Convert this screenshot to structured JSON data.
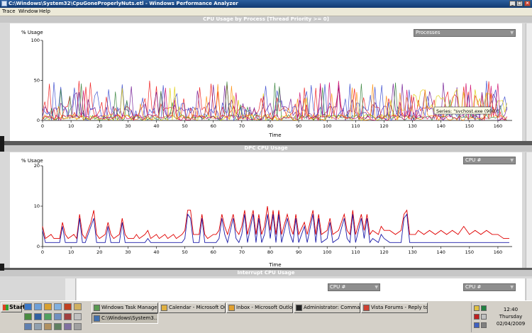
{
  "window": {
    "title": "C:\\Windows\\System32\\CpuGoneProperlyNuts.etl - Windows Performance Analyzer",
    "buttons": {
      "minimize": "_",
      "maximize": "□",
      "close": "×"
    }
  },
  "menu": {
    "items": [
      "Trace",
      "Window",
      "Help"
    ]
  },
  "panels": {
    "cpu": {
      "title": "CPU Usage by Process [Thread Priority >= 0]",
      "dropdown": "Processes",
      "ylabel": "% Usage",
      "xlabel": "Time",
      "tooltip": "Series: \"svchost.exe (900)\""
    },
    "dpc": {
      "title": "DPC CPU Usage",
      "dropdown": "CPU #",
      "ylabel": "% Usage",
      "xlabel": "Time"
    },
    "interrupt": {
      "title": "Interrupt CPU Usage",
      "dropdown_left": "CPU #",
      "dropdown_right": "CPU #"
    }
  },
  "chart_data": [
    {
      "type": "line",
      "title": "CPU Usage by Process [Thread Priority >= 0]",
      "ylabel": "% Usage",
      "xlabel": "Time",
      "ylim": [
        0,
        100
      ],
      "xlim": [
        0,
        165
      ],
      "yticks": [
        0,
        50,
        100
      ],
      "xticks": [
        0,
        10,
        20,
        30,
        40,
        50,
        60,
        70,
        80,
        90,
        100,
        110,
        120,
        130,
        140,
        150,
        160
      ],
      "series_colors": [
        "#ee1111",
        "#6a0d8e",
        "#3344cc",
        "#ddcc00",
        "#2e7d32",
        "#ff8800",
        "#cc0066"
      ],
      "approx_range": {
        "min": 0,
        "max": 50,
        "typical": 15
      }
    },
    {
      "type": "line",
      "title": "DPC CPU Usage",
      "ylabel": "% Usage",
      "xlabel": "Time",
      "ylim": [
        0,
        20
      ],
      "xlim": [
        0,
        165
      ],
      "yticks": [
        0,
        10,
        20
      ],
      "xticks": [
        0,
        10,
        20,
        30,
        40,
        50,
        60,
        70,
        80,
        90,
        100,
        110,
        120,
        130,
        140,
        150,
        160
      ],
      "series": [
        {
          "color": "#e00000",
          "points": [
            [
              0,
              5
            ],
            [
              1,
              2
            ],
            [
              3,
              3
            ],
            [
              4,
              2
            ],
            [
              6,
              2
            ],
            [
              7,
              6
            ],
            [
              8,
              3
            ],
            [
              9,
              2
            ],
            [
              11,
              3
            ],
            [
              12,
              2
            ],
            [
              13,
              8
            ],
            [
              14,
              3
            ],
            [
              15,
              2
            ],
            [
              17,
              6
            ],
            [
              18,
              9
            ],
            [
              19,
              3
            ],
            [
              20,
              2
            ],
            [
              22,
              3
            ],
            [
              23,
              6
            ],
            [
              24,
              3
            ],
            [
              25,
              2
            ],
            [
              27,
              3
            ],
            [
              28,
              7
            ],
            [
              29,
              3
            ],
            [
              30,
              2
            ],
            [
              32,
              2
            ],
            [
              33,
              3
            ],
            [
              34,
              2
            ],
            [
              36,
              3
            ],
            [
              37,
              4
            ],
            [
              38,
              2
            ],
            [
              40,
              3
            ],
            [
              41,
              2
            ],
            [
              43,
              3
            ],
            [
              44,
              2
            ],
            [
              46,
              3
            ],
            [
              47,
              2
            ],
            [
              49,
              3
            ],
            [
              50,
              4
            ],
            [
              51,
              9
            ],
            [
              52,
              9
            ],
            [
              53,
              3
            ],
            [
              55,
              3
            ],
            [
              56,
              8
            ],
            [
              57,
              3
            ],
            [
              58,
              2
            ],
            [
              60,
              3
            ],
            [
              61,
              3
            ],
            [
              62,
              4
            ],
            [
              63,
              8
            ],
            [
              64,
              5
            ],
            [
              65,
              3
            ],
            [
              67,
              8
            ],
            [
              68,
              4
            ],
            [
              69,
              3
            ],
            [
              70,
              5
            ],
            [
              71,
              9
            ],
            [
              72,
              3
            ],
            [
              74,
              9
            ],
            [
              75,
              3
            ],
            [
              76,
              8
            ],
            [
              77,
              3
            ],
            [
              78,
              5
            ],
            [
              79,
              10
            ],
            [
              80,
              4
            ],
            [
              81,
              9
            ],
            [
              82,
              3
            ],
            [
              83,
              9
            ],
            [
              84,
              3
            ],
            [
              86,
              8
            ],
            [
              87,
              5
            ],
            [
              88,
              3
            ],
            [
              89,
              8
            ],
            [
              90,
              3
            ],
            [
              92,
              6
            ],
            [
              93,
              3
            ],
            [
              95,
              9
            ],
            [
              96,
              3
            ],
            [
              97,
              8
            ],
            [
              98,
              3
            ],
            [
              100,
              4
            ],
            [
              101,
              7
            ],
            [
              102,
              3
            ],
            [
              104,
              4
            ],
            [
              106,
              8
            ],
            [
              107,
              4
            ],
            [
              108,
              3
            ],
            [
              109,
              9
            ],
            [
              110,
              3
            ],
            [
              112,
              8
            ],
            [
              113,
              4
            ],
            [
              114,
              8
            ],
            [
              115,
              3
            ],
            [
              116,
              4
            ],
            [
              118,
              3
            ],
            [
              119,
              5
            ],
            [
              120,
              4
            ],
            [
              122,
              4
            ],
            [
              124,
              3
            ],
            [
              126,
              4
            ],
            [
              127,
              8
            ],
            [
              128,
              9
            ],
            [
              129,
              3
            ],
            [
              131,
              3
            ],
            [
              132,
              4
            ],
            [
              134,
              3
            ],
            [
              136,
              4
            ],
            [
              138,
              3
            ],
            [
              140,
              4
            ],
            [
              142,
              3
            ],
            [
              144,
              4
            ],
            [
              146,
              3
            ],
            [
              148,
              5
            ],
            [
              150,
              3
            ],
            [
              152,
              4
            ],
            [
              154,
              3
            ],
            [
              156,
              4
            ],
            [
              158,
              3
            ],
            [
              160,
              3
            ],
            [
              162,
              2
            ],
            [
              164,
              2
            ]
          ]
        },
        {
          "color": "#1a1aa8",
          "points": [
            [
              0,
              4
            ],
            [
              1,
              1
            ],
            [
              3,
              1
            ],
            [
              4,
              1
            ],
            [
              6,
              1
            ],
            [
              7,
              5
            ],
            [
              8,
              1
            ],
            [
              9,
              1
            ],
            [
              11,
              1
            ],
            [
              12,
              1
            ],
            [
              13,
              7
            ],
            [
              14,
              1
            ],
            [
              15,
              1
            ],
            [
              17,
              5
            ],
            [
              18,
              7
            ],
            [
              19,
              1
            ],
            [
              20,
              1
            ],
            [
              22,
              1
            ],
            [
              23,
              5
            ],
            [
              24,
              1
            ],
            [
              25,
              1
            ],
            [
              27,
              1
            ],
            [
              28,
              6
            ],
            [
              29,
              1
            ],
            [
              30,
              1
            ],
            [
              32,
              1
            ],
            [
              33,
              1
            ],
            [
              34,
              1
            ],
            [
              36,
              1
            ],
            [
              37,
              2
            ],
            [
              38,
              1
            ],
            [
              40,
              1
            ],
            [
              41,
              1
            ],
            [
              43,
              1
            ],
            [
              44,
              1
            ],
            [
              46,
              1
            ],
            [
              47,
              1
            ],
            [
              49,
              1
            ],
            [
              50,
              2
            ],
            [
              51,
              8
            ],
            [
              52,
              7
            ],
            [
              53,
              1
            ],
            [
              55,
              1
            ],
            [
              56,
              7
            ],
            [
              57,
              1
            ],
            [
              58,
              1
            ],
            [
              60,
              1
            ],
            [
              61,
              1
            ],
            [
              62,
              2
            ],
            [
              63,
              7
            ],
            [
              64,
              3
            ],
            [
              65,
              1
            ],
            [
              67,
              7
            ],
            [
              68,
              2
            ],
            [
              69,
              1
            ],
            [
              70,
              3
            ],
            [
              71,
              8
            ],
            [
              72,
              1
            ],
            [
              74,
              8
            ],
            [
              75,
              1
            ],
            [
              76,
              7
            ],
            [
              77,
              1
            ],
            [
              78,
              3
            ],
            [
              79,
              8
            ],
            [
              80,
              2
            ],
            [
              81,
              8
            ],
            [
              82,
              1
            ],
            [
              83,
              8
            ],
            [
              84,
              1
            ],
            [
              86,
              7
            ],
            [
              87,
              3
            ],
            [
              88,
              1
            ],
            [
              89,
              7
            ],
            [
              90,
              1
            ],
            [
              92,
              5
            ],
            [
              93,
              1
            ],
            [
              95,
              8
            ],
            [
              96,
              1
            ],
            [
              97,
              7
            ],
            [
              98,
              1
            ],
            [
              100,
              2
            ],
            [
              101,
              6
            ],
            [
              102,
              1
            ],
            [
              104,
              2
            ],
            [
              106,
              7
            ],
            [
              107,
              2
            ],
            [
              108,
              1
            ],
            [
              109,
              8
            ],
            [
              110,
              1
            ],
            [
              112,
              7
            ],
            [
              113,
              2
            ],
            [
              114,
              7
            ],
            [
              115,
              1
            ],
            [
              116,
              2
            ],
            [
              118,
              1
            ],
            [
              119,
              3
            ],
            [
              120,
              2
            ],
            [
              122,
              1
            ],
            [
              124,
              1
            ],
            [
              126,
              1
            ],
            [
              127,
              7
            ],
            [
              128,
              8
            ],
            [
              129,
              1
            ],
            [
              131,
              1
            ],
            [
              132,
              1
            ],
            [
              134,
              1
            ],
            [
              136,
              1
            ],
            [
              138,
              1
            ],
            [
              140,
              1
            ],
            [
              142,
              1
            ],
            [
              144,
              1
            ],
            [
              146,
              1
            ],
            [
              148,
              1
            ],
            [
              150,
              1
            ],
            [
              152,
              1
            ],
            [
              154,
              1
            ],
            [
              156,
              1
            ],
            [
              158,
              1
            ],
            [
              160,
              1
            ],
            [
              162,
              1
            ],
            [
              164,
              1
            ]
          ]
        }
      ]
    }
  ],
  "taskbar": {
    "start": "Start",
    "tasks": [
      "Windows Task Manager",
      "Calendar - Microsoft Outl...",
      "Inbox - Microsoft Outlook",
      "Administrator: Command...",
      "Vista Forums - Reply to T...",
      "C:\\Windows\\System3..."
    ],
    "clock": {
      "time": "12:40",
      "day": "Thursday",
      "date": "02/04/2009"
    }
  }
}
